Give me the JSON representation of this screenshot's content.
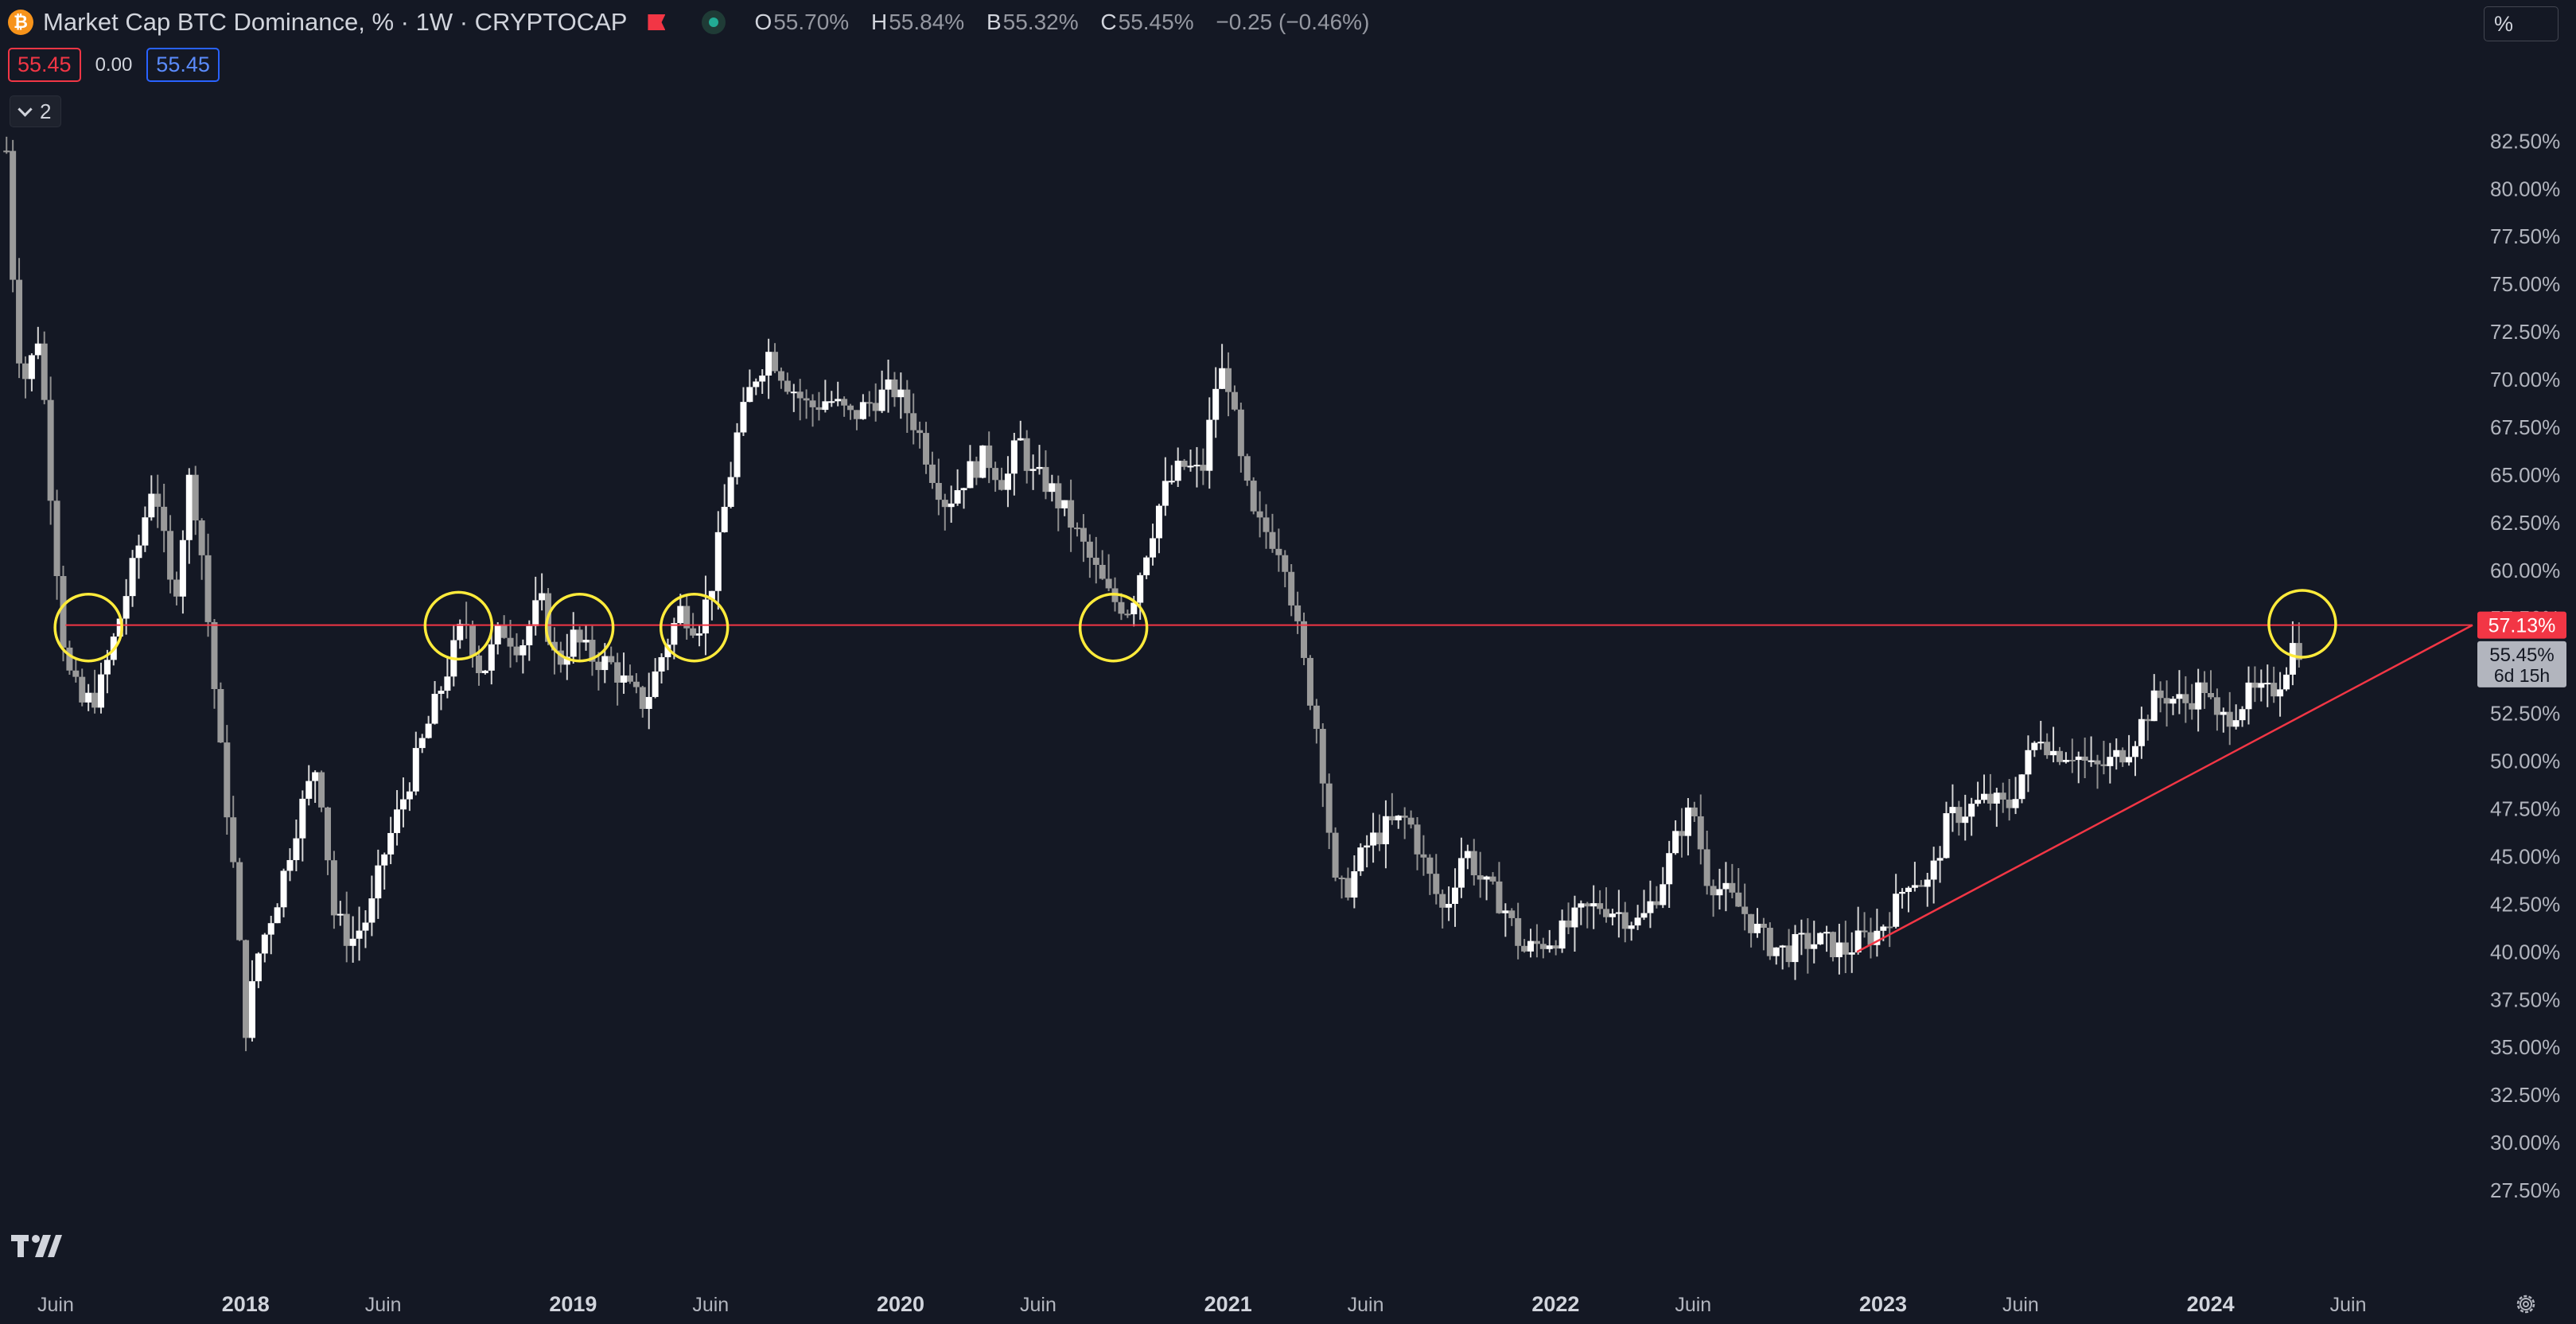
{
  "header": {
    "title": "Market Cap BTC Dominance, % · 1W · CRYPTOCAP",
    "logo_letter": "₿",
    "ohlc": [
      {
        "key": "O",
        "value": "55.70%"
      },
      {
        "key": "H",
        "value": "55.84%"
      },
      {
        "key": "B",
        "value": "55.32%"
      },
      {
        "key": "C",
        "value": "55.45%"
      }
    ],
    "change": "−0.25 (−0.46%)",
    "bid": "55.45",
    "spread": "0.00",
    "ask": "55.45",
    "collapse_count": "2",
    "scale_mode": "%",
    "icons": [
      "bitcoin-logo",
      "flag-icon",
      "market-status-icon",
      "chevron-down-icon",
      "tradingview-logo",
      "gear-icon"
    ]
  },
  "colors": {
    "background": "#141824",
    "candle": "#ffffff",
    "resistance": "#f23645",
    "trendline": "#f23645",
    "circle": "#ffeb3b",
    "axis_text": "#b2b5be"
  },
  "chart_data": {
    "type": "candlestick",
    "timeframe": "1W",
    "y_axis": {
      "ticks": [
        "82.50%",
        "80.00%",
        "77.50%",
        "75.00%",
        "72.50%",
        "70.00%",
        "67.50%",
        "65.00%",
        "62.50%",
        "60.00%",
        "57.50%",
        "55.00%",
        "52.50%",
        "50.00%",
        "47.50%",
        "45.00%",
        "42.50%",
        "40.00%",
        "37.50%",
        "35.00%",
        "32.50%",
        "30.00%",
        "27.50%"
      ],
      "range": [
        25.5,
        85.1
      ],
      "position": "right"
    },
    "x_axis": {
      "labels": [
        {
          "text": "Juin",
          "t": 2017.42
        },
        {
          "text": "2018",
          "t": 2018.0
        },
        {
          "text": "Juin",
          "t": 2018.42
        },
        {
          "text": "2019",
          "t": 2019.0
        },
        {
          "text": "Juin",
          "t": 2019.42
        },
        {
          "text": "2020",
          "t": 2020.0
        },
        {
          "text": "Juin",
          "t": 2020.42
        },
        {
          "text": "2021",
          "t": 2021.0
        },
        {
          "text": "Juin",
          "t": 2021.42
        },
        {
          "text": "2022",
          "t": 2022.0
        },
        {
          "text": "Juin",
          "t": 2022.42
        },
        {
          "text": "2023",
          "t": 2023.0
        },
        {
          "text": "Juin",
          "t": 2023.42
        },
        {
          "text": "2024",
          "t": 2024.0
        },
        {
          "text": "Juin",
          "t": 2024.42
        }
      ],
      "range": [
        2017.25,
        2024.8
      ]
    },
    "series_path": [
      [
        2017.27,
        82.0
      ],
      [
        2017.3,
        72.0
      ],
      [
        2017.33,
        70.0
      ],
      [
        2017.37,
        72.5
      ],
      [
        2017.41,
        63.0
      ],
      [
        2017.45,
        55.0
      ],
      [
        2017.5,
        53.0
      ],
      [
        2017.55,
        53.5
      ],
      [
        2017.6,
        56.5
      ],
      [
        2017.67,
        61.0
      ],
      [
        2017.72,
        65.0
      ],
      [
        2017.78,
        58.0
      ],
      [
        2017.83,
        65.0
      ],
      [
        2017.86,
        62.0
      ],
      [
        2017.92,
        51.0
      ],
      [
        2017.96,
        45.0
      ],
      [
        2018.0,
        36.0
      ],
      [
        2018.04,
        40.0
      ],
      [
        2018.1,
        43.0
      ],
      [
        2018.16,
        47.0
      ],
      [
        2018.22,
        50.0
      ],
      [
        2018.27,
        42.0
      ],
      [
        2018.32,
        40.5
      ],
      [
        2018.38,
        42.0
      ],
      [
        2018.42,
        45.0
      ],
      [
        2018.48,
        48.0
      ],
      [
        2018.55,
        51.5
      ],
      [
        2018.62,
        55.0
      ],
      [
        2018.67,
        57.5
      ],
      [
        2018.72,
        54.5
      ],
      [
        2018.78,
        57.0
      ],
      [
        2018.84,
        56.0
      ],
      [
        2018.9,
        58.5
      ],
      [
        2018.95,
        55.0
      ],
      [
        2019.0,
        56.5
      ],
      [
        2019.05,
        55.5
      ],
      [
        2019.12,
        55.0
      ],
      [
        2019.18,
        53.5
      ],
      [
        2019.22,
        53.0
      ],
      [
        2019.28,
        56.0
      ],
      [
        2019.33,
        58.0
      ],
      [
        2019.38,
        57.0
      ],
      [
        2019.42,
        59.0
      ],
      [
        2019.46,
        63.0
      ],
      [
        2019.5,
        67.0
      ],
      [
        2019.55,
        70.0
      ],
      [
        2019.6,
        71.5
      ],
      [
        2019.65,
        70.0
      ],
      [
        2019.72,
        68.5
      ],
      [
        2019.78,
        69.0
      ],
      [
        2019.85,
        68.0
      ],
      [
        2019.92,
        69.0
      ],
      [
        2019.98,
        69.5
      ],
      [
        2020.05,
        67.5
      ],
      [
        2020.1,
        65.0
      ],
      [
        2020.14,
        63.5
      ],
      [
        2020.2,
        65.0
      ],
      [
        2020.26,
        66.0
      ],
      [
        2020.32,
        64.5
      ],
      [
        2020.36,
        67.0
      ],
      [
        2020.4,
        65.0
      ],
      [
        2020.45,
        64.5
      ],
      [
        2020.52,
        62.5
      ],
      [
        2020.58,
        60.5
      ],
      [
        2020.64,
        58.5
      ],
      [
        2020.7,
        58.0
      ],
      [
        2020.74,
        60.5
      ],
      [
        2020.8,
        64.0
      ],
      [
        2020.86,
        65.5
      ],
      [
        2020.92,
        65.0
      ],
      [
        2020.97,
        70.5
      ],
      [
        2021.0,
        70.0
      ],
      [
        2021.04,
        65.5
      ],
      [
        2021.08,
        62.5
      ],
      [
        2021.12,
        62.0
      ],
      [
        2021.17,
        61.0
      ],
      [
        2021.22,
        56.0
      ],
      [
        2021.28,
        51.0
      ],
      [
        2021.33,
        43.0
      ],
      [
        2021.37,
        43.5
      ],
      [
        2021.42,
        45.5
      ],
      [
        2021.48,
        46.5
      ],
      [
        2021.55,
        47.0
      ],
      [
        2021.6,
        44.5
      ],
      [
        2021.66,
        42.0
      ],
      [
        2021.72,
        45.5
      ],
      [
        2021.78,
        43.5
      ],
      [
        2021.84,
        42.5
      ],
      [
        2021.9,
        40.0
      ],
      [
        2021.96,
        40.5
      ],
      [
        2022.02,
        41.0
      ],
      [
        2022.08,
        42.0
      ],
      [
        2022.14,
        42.5
      ],
      [
        2022.2,
        42.0
      ],
      [
        2022.26,
        41.5
      ],
      [
        2022.32,
        43.5
      ],
      [
        2022.38,
        46.5
      ],
      [
        2022.42,
        47.5
      ],
      [
        2022.46,
        44.0
      ],
      [
        2022.52,
        43.0
      ],
      [
        2022.58,
        42.0
      ],
      [
        2022.64,
        40.5
      ],
      [
        2022.7,
        40.0
      ],
      [
        2022.76,
        40.5
      ],
      [
        2022.82,
        40.5
      ],
      [
        2022.88,
        40.0
      ],
      [
        2022.92,
        40.5
      ],
      [
        2022.98,
        41.0
      ],
      [
        2023.04,
        42.5
      ],
      [
        2023.08,
        44.0
      ],
      [
        2023.14,
        43.5
      ],
      [
        2023.2,
        47.0
      ],
      [
        2023.26,
        47.5
      ],
      [
        2023.32,
        48.0
      ],
      [
        2023.38,
        47.5
      ],
      [
        2023.44,
        50.0
      ],
      [
        2023.48,
        51.5
      ],
      [
        2023.52,
        50.5
      ],
      [
        2023.58,
        50.5
      ],
      [
        2023.64,
        49.5
      ],
      [
        2023.7,
        50.0
      ],
      [
        2023.76,
        51.0
      ],
      [
        2023.82,
        53.0
      ],
      [
        2023.86,
        53.5
      ],
      [
        2023.92,
        53.0
      ],
      [
        2023.98,
        54.0
      ],
      [
        2024.02,
        52.0
      ],
      [
        2024.06,
        52.5
      ],
      [
        2024.12,
        53.5
      ],
      [
        2024.18,
        53.5
      ],
      [
        2024.22,
        54.5
      ],
      [
        2024.26,
        56.5
      ],
      [
        2024.28,
        55.45
      ]
    ],
    "last_price": {
      "value": 55.45,
      "label": "55.45%",
      "countdown": "6d 15h"
    },
    "annotations": {
      "resistance": {
        "value": 57.13,
        "label": "57.13%",
        "x_start": 2017.45
      },
      "trendline": {
        "from": [
          2022.92,
          40.0
        ],
        "to": [
          2024.8,
          57.13
        ]
      },
      "circles": [
        {
          "t": 2017.52,
          "y": 57.0
        },
        {
          "t": 2018.65,
          "y": 57.1
        },
        {
          "t": 2019.02,
          "y": 57.0
        },
        {
          "t": 2019.37,
          "y": 57.0
        },
        {
          "t": 2020.65,
          "y": 57.0
        },
        {
          "t": 2024.28,
          "y": 57.2
        }
      ]
    }
  }
}
